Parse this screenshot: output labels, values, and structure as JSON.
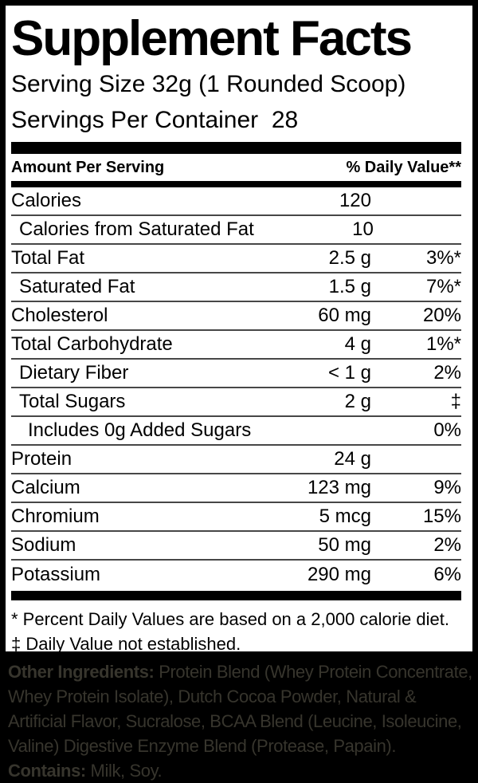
{
  "label": {
    "title": "Supplement Facts",
    "serving_size": "Serving Size 32g (1 Rounded Scoop)",
    "servings_per_container": "Servings Per Container  28",
    "column_headers": {
      "amount": "Amount Per Serving",
      "daily_value": "% Daily Value**"
    },
    "rows": [
      {
        "name": "Calories",
        "amount": "120",
        "daily_value": "",
        "indent": 0
      },
      {
        "name": "Calories from Saturated Fat",
        "amount": "10",
        "daily_value": "",
        "indent": 1
      },
      {
        "name": "Total Fat",
        "amount": "2.5 g",
        "daily_value": "3%*",
        "indent": 0
      },
      {
        "name": "Saturated Fat",
        "amount": "1.5 g",
        "daily_value": "7%*",
        "indent": 1
      },
      {
        "name": "Cholesterol",
        "amount": "60 mg",
        "daily_value": "20%",
        "indent": 0
      },
      {
        "name": "Total Carbohydrate",
        "amount": "4 g",
        "daily_value": "1%*",
        "indent": 0
      },
      {
        "name": "Dietary Fiber",
        "amount": "< 1 g",
        "daily_value": "2%",
        "indent": 1
      },
      {
        "name": "Total Sugars",
        "amount": "2 g",
        "daily_value": "‡",
        "indent": 1
      },
      {
        "name": "Includes 0g Added Sugars",
        "amount": "",
        "daily_value": "0%",
        "indent": 2
      },
      {
        "name": "Protein",
        "amount": "24 g",
        "daily_value": "",
        "indent": 0
      },
      {
        "name": "Calcium",
        "amount": "123 mg",
        "daily_value": "9%",
        "indent": 0
      },
      {
        "name": "Chromium",
        "amount": "5 mcg",
        "daily_value": "15%",
        "indent": 0
      },
      {
        "name": "Sodium",
        "amount": "50 mg",
        "daily_value": "2%",
        "indent": 0
      },
      {
        "name": "Potassium",
        "amount": "290 mg",
        "daily_value": "6%",
        "indent": 0
      }
    ],
    "footnotes": [
      "* Percent Daily Values are based on a 2,000 calorie diet.",
      "‡ Daily Value not established."
    ]
  },
  "ingredients": {
    "lines": [
      {
        "label": "Other Ingredients:",
        "text": " Protein Blend (Whey Protein Concentrate,"
      },
      {
        "label": "",
        "text": "Whey Protein Isolate), Dutch Cocoa Powder, Natural &"
      },
      {
        "label": "",
        "text": "Artificial Flavor, Sucralose, BCAA Blend (Leucine, Isoleucine,"
      },
      {
        "label": "",
        "text": "Valine) Digestive Enzyme Blend (Protease, Papain)."
      },
      {
        "label": "Contains:",
        "text": " Milk, Soy."
      }
    ]
  },
  "colors": {
    "background": "#000000",
    "panel": "#ffffff",
    "text": "#000000",
    "rule": "#474747",
    "bar": "#000000",
    "ingredients_text": "#37352d"
  }
}
